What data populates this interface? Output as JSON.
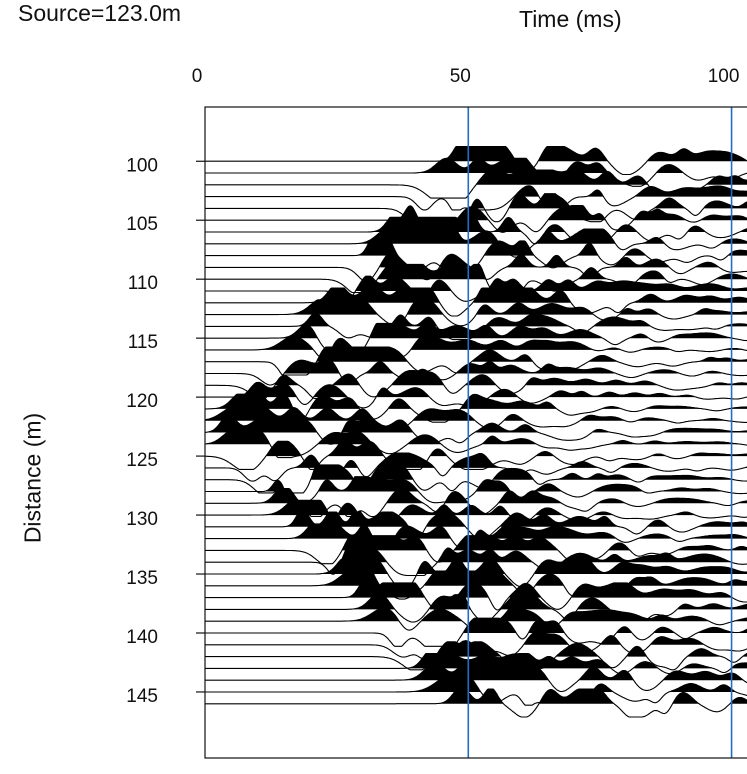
{
  "header": {
    "source_label": "Source=123.0m"
  },
  "chart_data": {
    "type": "seismic-wiggle",
    "xlabel": "Time (ms)",
    "ylabel": "Distance (m)",
    "x_ticks": [
      0,
      50,
      100
    ],
    "y_ticks": [
      100,
      105,
      110,
      115,
      120,
      125,
      130,
      135,
      140,
      145
    ],
    "xlim": [
      0,
      103.5
    ],
    "ylim": [
      95.4,
      150.6
    ],
    "marker_lines_ms": [
      50,
      100
    ],
    "marker_line_color": "#1f6fc4",
    "trace_color": "#000000",
    "trace_distances_m": [
      100,
      101,
      102,
      103,
      104,
      105,
      106,
      107,
      108,
      109,
      110,
      111,
      112,
      113,
      114,
      115,
      116,
      117,
      118,
      119,
      120,
      121,
      122,
      123,
      124,
      125,
      126,
      127,
      128,
      129,
      130,
      131,
      132,
      133,
      134,
      135,
      136,
      137,
      138,
      139,
      140,
      141,
      142,
      143,
      144,
      145,
      146
    ],
    "source_distance_m": 123.0,
    "first_break_velocity_m_per_ms": 0.52,
    "first_break_delay_ms": 3
  }
}
